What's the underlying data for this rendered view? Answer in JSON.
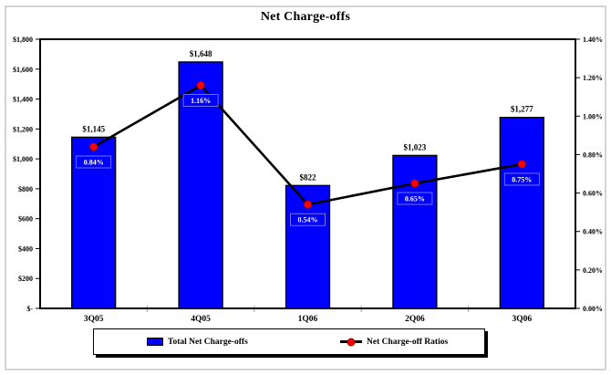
{
  "title": "Net Charge-offs",
  "colors": {
    "bar": "#0000FF",
    "bar_border": "#000000",
    "line": "#000000",
    "marker": "#FF0000",
    "marker_edge": "#990000",
    "frame": "#000000",
    "outer_border": "#D4D4D4",
    "ratio_label_text": "#FFFFFF",
    "ratio_label_box_border": "#8F8FD9",
    "category_tick": "#9A9A9A"
  },
  "legend": {
    "position": "bottom",
    "items": [
      {
        "label": "Total Net Charge-offs",
        "marker": "bar-swatch"
      },
      {
        "label": "Net Charge-off Ratios",
        "marker": "line-dot"
      }
    ]
  },
  "chart_data": {
    "type": "bar+line",
    "title": "Net Charge-offs",
    "categories": [
      "3Q05",
      "4Q05",
      "1Q06",
      "2Q06",
      "3Q06"
    ],
    "series": [
      {
        "name": "Total Net Charge-offs",
        "type": "bar",
        "axis": "left",
        "values": [
          1145,
          1648,
          822,
          1023,
          1277
        ],
        "labels": [
          "$1,145",
          "$1,648",
          "$822",
          "$1,023",
          "$1,277"
        ]
      },
      {
        "name": "Net Charge-off Ratios",
        "type": "line",
        "axis": "right",
        "values": [
          0.84,
          1.16,
          0.54,
          0.65,
          0.75
        ],
        "labels": [
          "0.84%",
          "1.16%",
          "0.54%",
          "0.65%",
          "0.75%"
        ]
      }
    ],
    "left_axis": {
      "min": 0,
      "max": 1800,
      "tick_step": 200,
      "ticks": [
        "$1,800",
        "$1,600",
        "$1,400",
        "$1,200",
        "$1,000",
        "$800",
        "$600",
        "$400",
        "$200",
        "$-"
      ]
    },
    "right_axis": {
      "min": 0,
      "max": 1.4,
      "tick_step": 0.2,
      "ticks": [
        "1.40%",
        "1.20%",
        "1.00%",
        "0.80%",
        "0.60%",
        "0.40%",
        "0.20%",
        "0.00%"
      ]
    },
    "grid": false,
    "legend_position": "bottom"
  }
}
